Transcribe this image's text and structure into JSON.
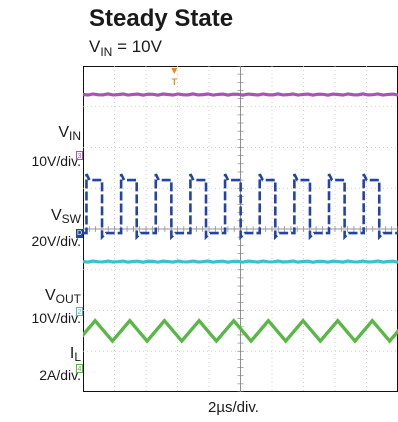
{
  "title": "Steady State",
  "condition": {
    "prefix": "V",
    "sub": "IN",
    "suffix": " = 10V"
  },
  "channels": [
    {
      "name_prefix": "V",
      "name_sub": "IN",
      "scale": "10V/div.",
      "marker": "3",
      "color": "#b04fb8"
    },
    {
      "name_prefix": "V",
      "name_sub": "SW",
      "scale": "20V/div.",
      "marker": "D",
      "color": "#2244a8"
    },
    {
      "name_prefix": "V",
      "name_sub": "OUT",
      "scale": "10V/div.",
      "marker": "2",
      "color": "#3cc0cc"
    },
    {
      "name_prefix": "I",
      "name_sub": "L",
      "scale": "2A/div.",
      "marker": "4",
      "color": "#58b844"
    }
  ],
  "chart_data": {
    "type": "line",
    "title": "Steady State",
    "subtitle": "VIN = 10V",
    "xlabel": "2µs/div.",
    "x_unit": "µs",
    "x_per_div": 2,
    "divisions_x": 10,
    "divisions_y": 8,
    "grid": true,
    "trigger_marker": "T",
    "series": [
      {
        "name": "VIN",
        "scale": "10V/div.",
        "shape": "dc",
        "level_div": 3.3,
        "color": "#b04fb8"
      },
      {
        "name": "VSW",
        "scale": "20V/div.",
        "shape": "square",
        "period_us": 2.2,
        "duty": 0.45,
        "high_div": 1.2,
        "low_div": -0.1,
        "baseline_div": 0,
        "color": "#2244a8"
      },
      {
        "name": "VOUT",
        "scale": "10V/div.",
        "shape": "dc",
        "level_div": -0.8,
        "color": "#3cc0cc"
      },
      {
        "name": "IL",
        "scale": "2A/div.",
        "shape": "triangle",
        "period_us": 2.2,
        "center_div": -2.5,
        "ripple_div": 0.5,
        "color": "#58b844"
      }
    ]
  }
}
